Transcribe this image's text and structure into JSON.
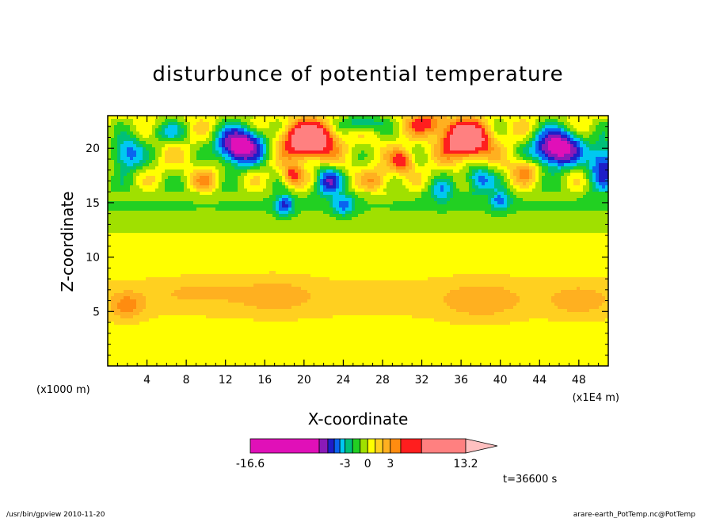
{
  "chart_data": {
    "type": "heatmap",
    "title": "disturbunce of potential temperature",
    "xlabel": "X-coordinate",
    "ylabel": "Z-coordinate",
    "x_unit_left": "(x1000 m)",
    "x_unit_right": "(x1E4 m)",
    "xlim": [
      0,
      51
    ],
    "ylim": [
      0,
      23
    ],
    "x_ticks": [
      4,
      8,
      12,
      16,
      20,
      24,
      28,
      32,
      36,
      40,
      44,
      48
    ],
    "x_tick_labels": [
      "4",
      "8",
      "12",
      "16",
      "20",
      "24",
      "28",
      "32",
      "36",
      "40",
      "44",
      "48"
    ],
    "y_ticks": [
      5,
      10,
      15,
      20
    ],
    "y_tick_labels": [
      "5",
      "10",
      "15",
      "20"
    ],
    "time_label": "t=36600 s",
    "colorbar": {
      "labels": [
        {
          "text": "-16.6",
          "value": -16.6
        },
        {
          "text": "-3",
          "value": -3
        },
        {
          "text": "0",
          "value": 0
        },
        {
          "text": "3",
          "value": 3
        },
        {
          "text": "13.2",
          "value": 13.2
        }
      ],
      "bins": [
        {
          "from": -16.6,
          "to": -9,
          "color": "#e010b8"
        },
        {
          "from": -9,
          "to": -7,
          "color": "#8a1ab8"
        },
        {
          "from": -7,
          "to": -5.5,
          "color": "#1e1ec8"
        },
        {
          "from": -5.5,
          "to": -4.2,
          "color": "#0a64f0"
        },
        {
          "from": -4.2,
          "to": -3,
          "color": "#00c8f0"
        },
        {
          "from": -3,
          "to": -2,
          "color": "#00c078"
        },
        {
          "from": -2,
          "to": -1,
          "color": "#22d022"
        },
        {
          "from": -1,
          "to": 0,
          "color": "#a0e000"
        },
        {
          "from": 0,
          "to": 1,
          "color": "#ffff00"
        },
        {
          "from": 1,
          "to": 2,
          "color": "#ffd020"
        },
        {
          "from": 2,
          "to": 3,
          "color": "#ffb020"
        },
        {
          "from": 3,
          "to": 4,
          "color": "#ff8c10"
        },
        {
          "from": 4,
          "to": 6,
          "color": "#ff1e1e"
        },
        {
          "from": 6,
          "to": 13.2,
          "color": "#ff8080"
        }
      ],
      "over_color": "#ffc0c0"
    }
  },
  "footer": {
    "left": "/usr/bin/gpview   2010-11-20",
    "right": "arare-earth_PotTemp.nc@PotTemp"
  }
}
